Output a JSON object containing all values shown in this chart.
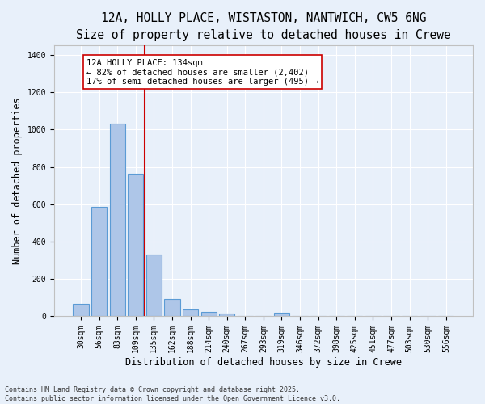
{
  "title_line1": "12A, HOLLY PLACE, WISTASTON, NANTWICH, CW5 6NG",
  "title_line2": "Size of property relative to detached houses in Crewe",
  "xlabel": "Distribution of detached houses by size in Crewe",
  "ylabel": "Number of detached properties",
  "categories": [
    "30sqm",
    "56sqm",
    "83sqm",
    "109sqm",
    "135sqm",
    "162sqm",
    "188sqm",
    "214sqm",
    "240sqm",
    "267sqm",
    "293sqm",
    "319sqm",
    "346sqm",
    "372sqm",
    "398sqm",
    "425sqm",
    "451sqm",
    "477sqm",
    "503sqm",
    "530sqm",
    "556sqm"
  ],
  "values": [
    65,
    585,
    1030,
    765,
    330,
    95,
    38,
    25,
    15,
    0,
    0,
    20,
    0,
    0,
    0,
    0,
    0,
    0,
    0,
    0,
    0
  ],
  "bar_color": "#aec6e8",
  "bar_edge_color": "#5b9bd5",
  "annotation_text": "12A HOLLY PLACE: 134sqm\n← 82% of detached houses are smaller (2,402)\n17% of semi-detached houses are larger (495) →",
  "annotation_box_color": "#ffffff",
  "annotation_box_edge_color": "#cc0000",
  "vline_color": "#cc0000",
  "ylim": [
    0,
    1450
  ],
  "yticks": [
    0,
    200,
    400,
    600,
    800,
    1000,
    1200,
    1400
  ],
  "background_color": "#e8f0fa",
  "grid_color": "#ffffff",
  "footer_text": "Contains HM Land Registry data © Crown copyright and database right 2025.\nContains public sector information licensed under the Open Government Licence v3.0.",
  "title_fontsize": 10.5,
  "subtitle_fontsize": 9.5,
  "tick_fontsize": 7,
  "ylabel_fontsize": 8.5,
  "xlabel_fontsize": 8.5,
  "annotation_fontsize": 7.5,
  "footer_fontsize": 6
}
